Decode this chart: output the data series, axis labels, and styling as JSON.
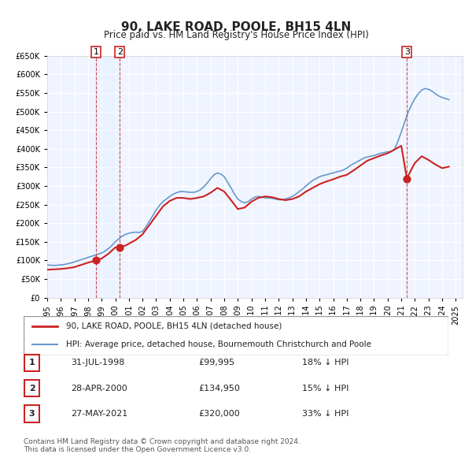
{
  "title": "90, LAKE ROAD, POOLE, BH15 4LN",
  "subtitle": "Price paid vs. HM Land Registry's House Price Index (HPI)",
  "ylabel": "",
  "ylim": [
    0,
    650000
  ],
  "yticks": [
    0,
    50000,
    100000,
    150000,
    200000,
    250000,
    300000,
    350000,
    400000,
    450000,
    500000,
    550000,
    600000,
    650000
  ],
  "xlim_start": 1995.0,
  "xlim_end": 2025.5,
  "background_color": "#ffffff",
  "plot_bg_color": "#f0f4ff",
  "grid_color": "#ffffff",
  "hpi_color": "#6699cc",
  "price_color": "#cc2222",
  "transactions": [
    {
      "id": 1,
      "date_num": 1998.58,
      "price": 99995,
      "label": "31-JUL-1998",
      "price_str": "£99,995",
      "hpi_str": "18% ↓ HPI"
    },
    {
      "id": 2,
      "date_num": 2000.33,
      "price": 134950,
      "label": "28-APR-2000",
      "price_str": "£134,950",
      "hpi_str": "15% ↓ HPI"
    },
    {
      "id": 3,
      "date_num": 2021.41,
      "price": 320000,
      "label": "27-MAY-2021",
      "price_str": "£320,000",
      "hpi_str": "33% ↓ HPI"
    }
  ],
  "vline_color": "#cc2222",
  "shade_color": "#ddeeff",
  "legend_label_price": "90, LAKE ROAD, POOLE, BH15 4LN (detached house)",
  "legend_label_hpi": "HPI: Average price, detached house, Bournemouth Christchurch and Poole",
  "footnote": "Contains HM Land Registry data © Crown copyright and database right 2024.\nThis data is licensed under the Open Government Licence v3.0.",
  "hpi_data_x": [
    1995.0,
    1995.25,
    1995.5,
    1995.75,
    1996.0,
    1996.25,
    1996.5,
    1996.75,
    1997.0,
    1997.25,
    1997.5,
    1997.75,
    1998.0,
    1998.25,
    1998.5,
    1998.75,
    1999.0,
    1999.25,
    1999.5,
    1999.75,
    2000.0,
    2000.25,
    2000.5,
    2000.75,
    2001.0,
    2001.25,
    2001.5,
    2001.75,
    2002.0,
    2002.25,
    2002.5,
    2002.75,
    2003.0,
    2003.25,
    2003.5,
    2003.75,
    2004.0,
    2004.25,
    2004.5,
    2004.75,
    2005.0,
    2005.25,
    2005.5,
    2005.75,
    2006.0,
    2006.25,
    2006.5,
    2006.75,
    2007.0,
    2007.25,
    2007.5,
    2007.75,
    2008.0,
    2008.25,
    2008.5,
    2008.75,
    2009.0,
    2009.25,
    2009.5,
    2009.75,
    2010.0,
    2010.25,
    2010.5,
    2010.75,
    2011.0,
    2011.25,
    2011.5,
    2011.75,
    2012.0,
    2012.25,
    2012.5,
    2012.75,
    2013.0,
    2013.25,
    2013.5,
    2013.75,
    2014.0,
    2014.25,
    2014.5,
    2014.75,
    2015.0,
    2015.25,
    2015.5,
    2015.75,
    2016.0,
    2016.25,
    2016.5,
    2016.75,
    2017.0,
    2017.25,
    2017.5,
    2017.75,
    2018.0,
    2018.25,
    2018.5,
    2018.75,
    2019.0,
    2019.25,
    2019.5,
    2019.75,
    2020.0,
    2020.25,
    2020.5,
    2020.75,
    2021.0,
    2021.25,
    2021.5,
    2021.75,
    2022.0,
    2022.25,
    2022.5,
    2022.75,
    2023.0,
    2023.25,
    2023.5,
    2023.75,
    2024.0,
    2024.25,
    2024.5
  ],
  "hpi_data_y": [
    88000,
    87000,
    86500,
    87000,
    88000,
    89000,
    91000,
    93000,
    96000,
    99000,
    102000,
    105000,
    108000,
    111000,
    114000,
    117000,
    120000,
    125000,
    132000,
    140000,
    150000,
    158000,
    165000,
    170000,
    173000,
    175000,
    176000,
    175000,
    178000,
    190000,
    205000,
    220000,
    235000,
    248000,
    258000,
    265000,
    272000,
    278000,
    282000,
    285000,
    285000,
    284000,
    283000,
    283000,
    285000,
    290000,
    298000,
    308000,
    320000,
    330000,
    335000,
    332000,
    325000,
    310000,
    295000,
    278000,
    265000,
    258000,
    255000,
    258000,
    265000,
    270000,
    272000,
    270000,
    268000,
    268000,
    267000,
    265000,
    263000,
    263000,
    265000,
    268000,
    272000,
    278000,
    285000,
    292000,
    300000,
    308000,
    315000,
    320000,
    325000,
    328000,
    330000,
    333000,
    335000,
    338000,
    340000,
    343000,
    348000,
    355000,
    360000,
    365000,
    370000,
    375000,
    378000,
    380000,
    382000,
    385000,
    388000,
    390000,
    392000,
    392000,
    398000,
    420000,
    445000,
    472000,
    498000,
    518000,
    535000,
    548000,
    558000,
    562000,
    560000,
    555000,
    548000,
    542000,
    538000,
    535000,
    532000
  ],
  "price_data_x": [
    1995.0,
    1995.5,
    1996.0,
    1996.5,
    1997.0,
    1997.5,
    1998.0,
    1998.58,
    1999.0,
    1999.5,
    2000.0,
    2000.33,
    2000.75,
    2001.0,
    2001.5,
    2002.0,
    2002.5,
    2003.0,
    2003.5,
    2004.0,
    2004.5,
    2005.0,
    2005.5,
    2006.0,
    2006.5,
    2007.0,
    2007.5,
    2008.0,
    2008.5,
    2009.0,
    2009.5,
    2010.0,
    2010.5,
    2011.0,
    2011.5,
    2012.0,
    2012.5,
    2013.0,
    2013.5,
    2014.0,
    2014.5,
    2015.0,
    2015.5,
    2016.0,
    2016.5,
    2017.0,
    2017.5,
    2018.0,
    2018.5,
    2019.0,
    2019.5,
    2020.0,
    2020.5,
    2021.0,
    2021.41,
    2021.75,
    2022.0,
    2022.5,
    2023.0,
    2023.5,
    2024.0,
    2024.5
  ],
  "price_data_y": [
    75000,
    76000,
    77000,
    79000,
    82000,
    88000,
    94000,
    99995,
    105000,
    118000,
    134950,
    134950,
    140000,
    145000,
    155000,
    170000,
    195000,
    220000,
    245000,
    260000,
    268000,
    268000,
    265000,
    268000,
    272000,
    282000,
    295000,
    285000,
    262000,
    238000,
    242000,
    258000,
    268000,
    272000,
    270000,
    265000,
    262000,
    265000,
    272000,
    285000,
    295000,
    305000,
    312000,
    318000,
    325000,
    330000,
    342000,
    355000,
    368000,
    375000,
    382000,
    388000,
    398000,
    408000,
    320000,
    345000,
    362000,
    380000,
    370000,
    358000,
    348000,
    352000
  ]
}
